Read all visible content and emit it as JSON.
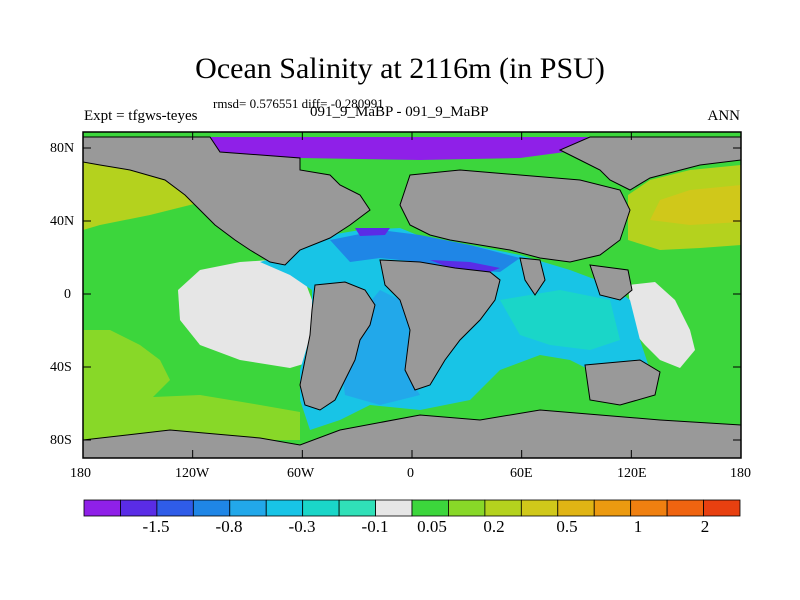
{
  "title": "Ocean Salinity at 2116m (in PSU)",
  "subtitle": "rmsd= 0.576551 diff= -0.280991",
  "left_header": "Expt = tfgws-teyes",
  "center_header": "091_9_MaBP - 091_9_MaBP",
  "right_header": "ANN",
  "lat_labels": [
    "80N",
    "40N",
    "0",
    "40S",
    "80S"
  ],
  "lon_labels": [
    "180",
    "120W",
    "60W",
    "0",
    "60E",
    "120E",
    "180"
  ],
  "colorbar": {
    "colors": [
      "#8f20e8",
      "#5a2ce6",
      "#2f5ce8",
      "#1f86e6",
      "#22a8ea",
      "#18c4e6",
      "#1ad6c8",
      "#30e0b8",
      "#e6e6e6",
      "#3cd63c",
      "#88d828",
      "#b4d21e",
      "#d0c81a",
      "#e0b414",
      "#ec9a10",
      "#f08010",
      "#f06410",
      "#e84010"
    ],
    "labels": [
      "-1.5",
      "-0.8",
      "-0.3",
      "-0.1",
      "0.05",
      "0.2",
      "0.5",
      "1",
      "2"
    ]
  },
  "colors": {
    "land": "#999999",
    "coast": "#000000"
  }
}
